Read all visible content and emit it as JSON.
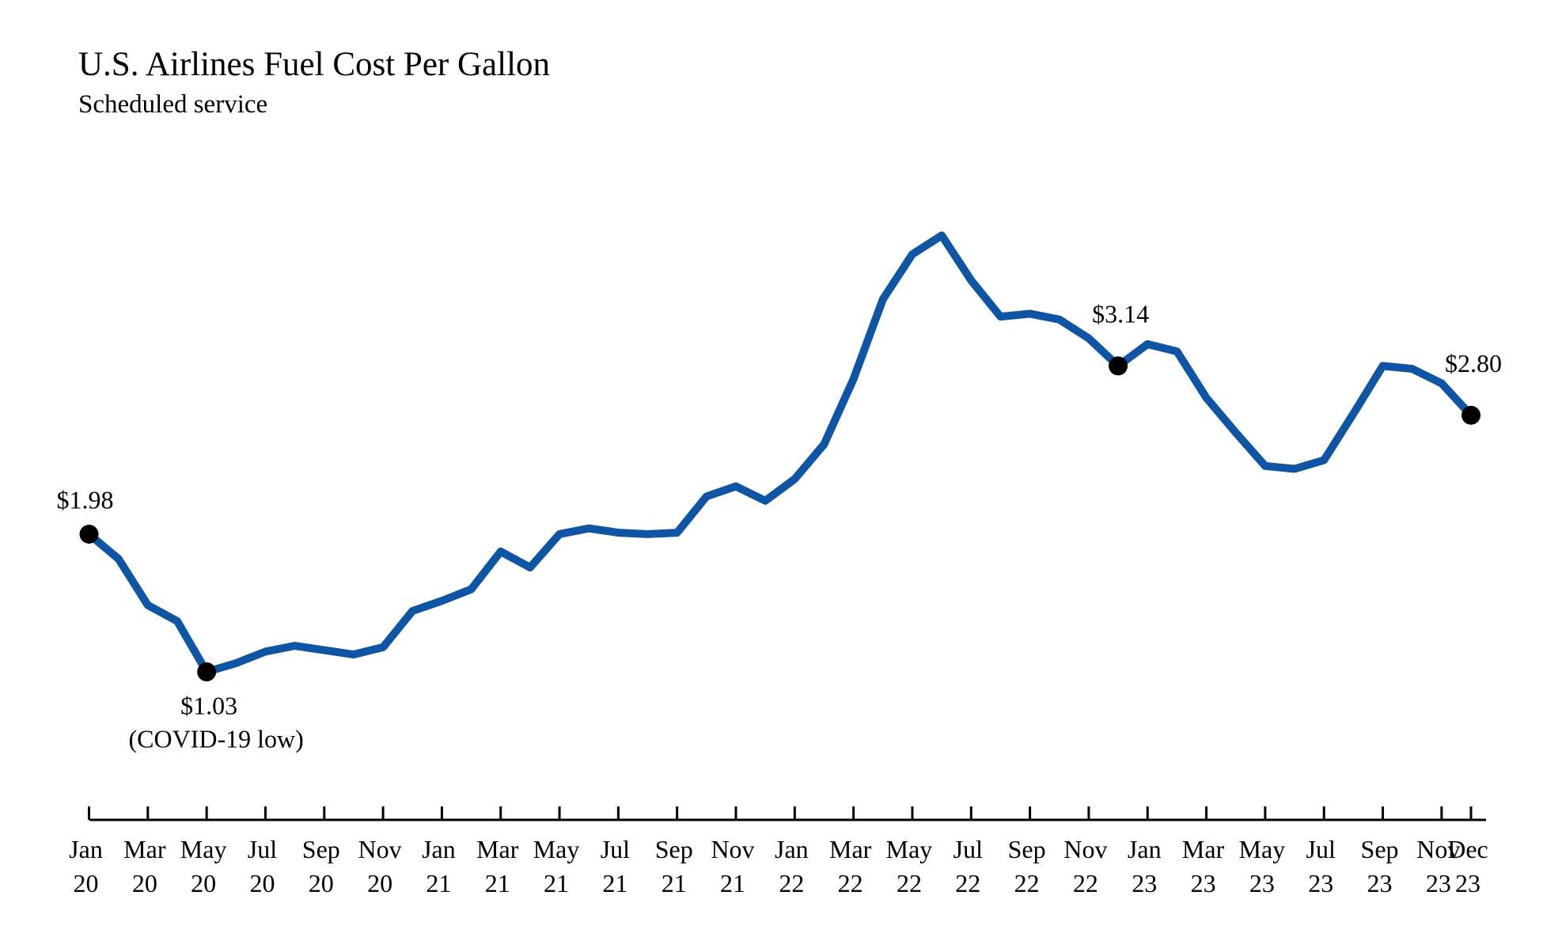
{
  "chart_data": {
    "type": "line",
    "title": "U.S. Airlines Fuel Cost Per Gallon",
    "subtitle": "Scheduled service",
    "categories": [
      "Jan\n20",
      null,
      "Mar\n20",
      null,
      "May\n20",
      null,
      "Jul\n20",
      null,
      "Sep\n20",
      null,
      "Nov\n20",
      null,
      "Jan\n21",
      null,
      "Mar\n21",
      null,
      "May\n21",
      null,
      "Jul\n21",
      null,
      "Sep\n21",
      null,
      "Nov\n21",
      null,
      "Jan\n22",
      null,
      "Mar\n22",
      null,
      "May\n22",
      null,
      "Jul\n22",
      null,
      "Sep\n22",
      null,
      "Nov\n22",
      null,
      "Jan\n23",
      null,
      "Mar\n23",
      null,
      "May\n23",
      null,
      "Jul\n23",
      null,
      "Sep\n23",
      null,
      "Nov\n23",
      "Dec\n23"
    ],
    "series": [
      {
        "name": "Fuel cost per gallon",
        "color": "#0f55a5",
        "values": [
          1.98,
          1.81,
          1.49,
          1.38,
          1.03,
          1.09,
          1.17,
          1.21,
          1.18,
          1.15,
          1.2,
          1.45,
          1.52,
          1.6,
          1.86,
          1.75,
          1.98,
          2.02,
          1.99,
          1.98,
          1.99,
          2.24,
          2.31,
          2.21,
          2.36,
          2.6,
          3.05,
          3.6,
          3.91,
          4.04,
          3.73,
          3.48,
          3.5,
          3.46,
          3.33,
          3.14,
          3.29,
          3.24,
          2.92,
          2.68,
          2.45,
          2.43,
          2.49,
          2.81,
          3.14,
          3.12,
          3.02,
          2.8
        ],
        "value_labels": [
          "$1.98",
          null,
          null,
          null,
          "$1.03",
          null,
          null,
          null,
          null,
          null,
          null,
          null,
          null,
          null,
          null,
          null,
          null,
          null,
          null,
          null,
          null,
          null,
          null,
          null,
          null,
          null,
          null,
          null,
          null,
          null,
          null,
          null,
          null,
          null,
          null,
          "$3.14",
          null,
          null,
          null,
          null,
          null,
          null,
          null,
          null,
          null,
          null,
          null,
          "$2.80"
        ]
      }
    ],
    "annotations": [
      "(COVID-19 low)"
    ]
  }
}
